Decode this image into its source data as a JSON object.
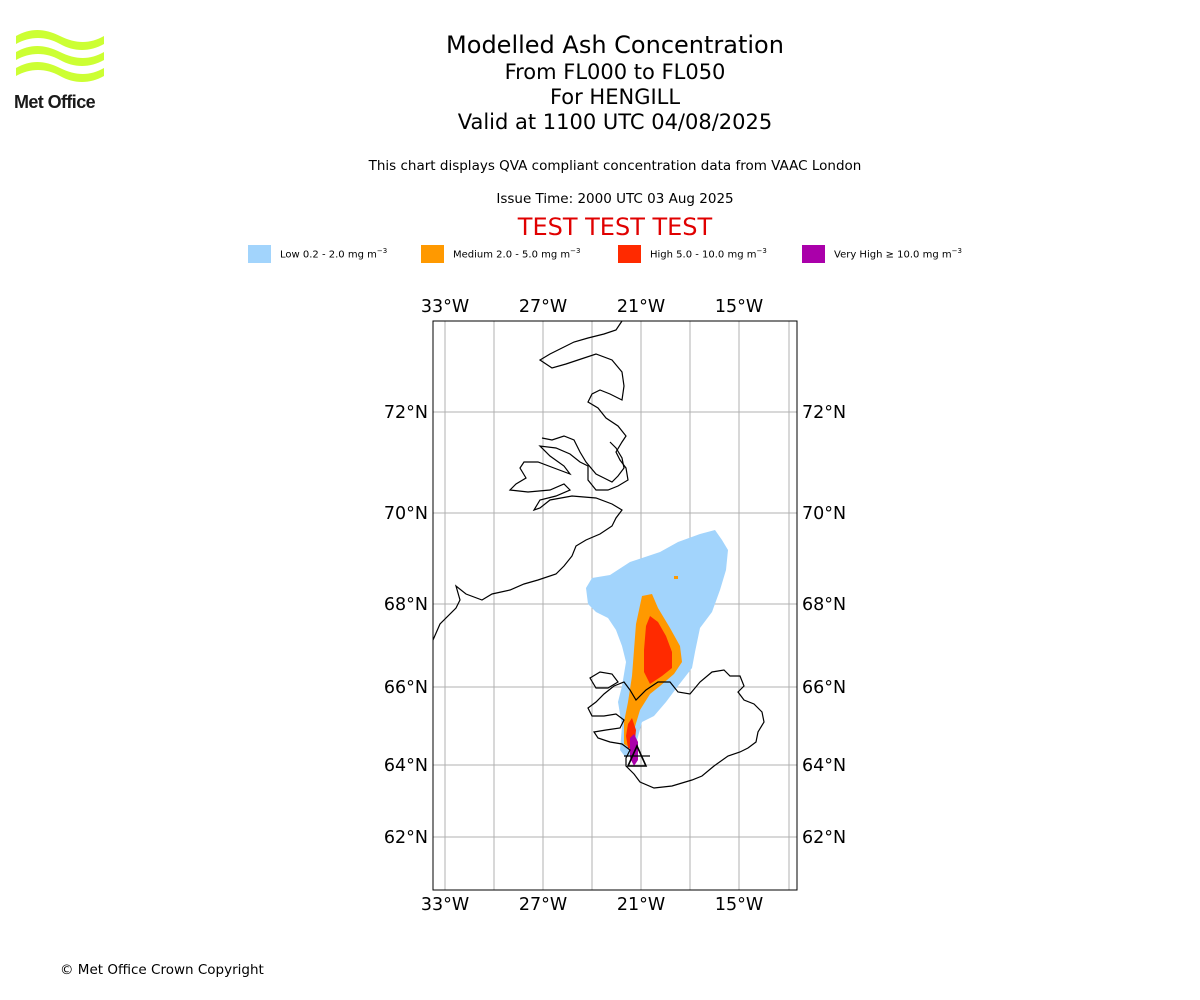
{
  "logo": {
    "text": "Met Office",
    "color": "#ccff33"
  },
  "title": {
    "line1": "Modelled Ash Concentration",
    "line2": "From FL000 to FL050",
    "line3": "For HENGILL",
    "line4": "Valid at 1100 UTC 04/08/2025"
  },
  "subtitle": "This chart displays QVA compliant concentration data from VAAC London",
  "issue_time": "Issue Time: 2000 UTC 03 Aug 2025",
  "test_banner": "TEST TEST TEST",
  "legend": [
    {
      "label": "Low 0.2 - 2.0 mg m",
      "unit_sup": "−3",
      "color": "#a2d4fc"
    },
    {
      "label": "Medium 2.0 - 5.0 mg m",
      "unit_sup": "−3",
      "color": "#ff9900"
    },
    {
      "label": "High 5.0 - 10.0 mg m",
      "unit_sup": "−3",
      "color": "#ff2a00"
    },
    {
      "label": "Very High  ≥  10.0 mg m",
      "unit_sup": "−3",
      "color": "#aa00aa"
    }
  ],
  "map": {
    "lon_labels": [
      "33°W",
      "27°W",
      "21°W",
      "15°W"
    ],
    "lat_labels": [
      "72°N",
      "70°N",
      "68°N",
      "66°N",
      "64°N",
      "62°N"
    ],
    "volcano_name": "HENGILL",
    "volcano_marker": "triangle-icon"
  },
  "copyright": "© Met Office Crown Copyright"
}
